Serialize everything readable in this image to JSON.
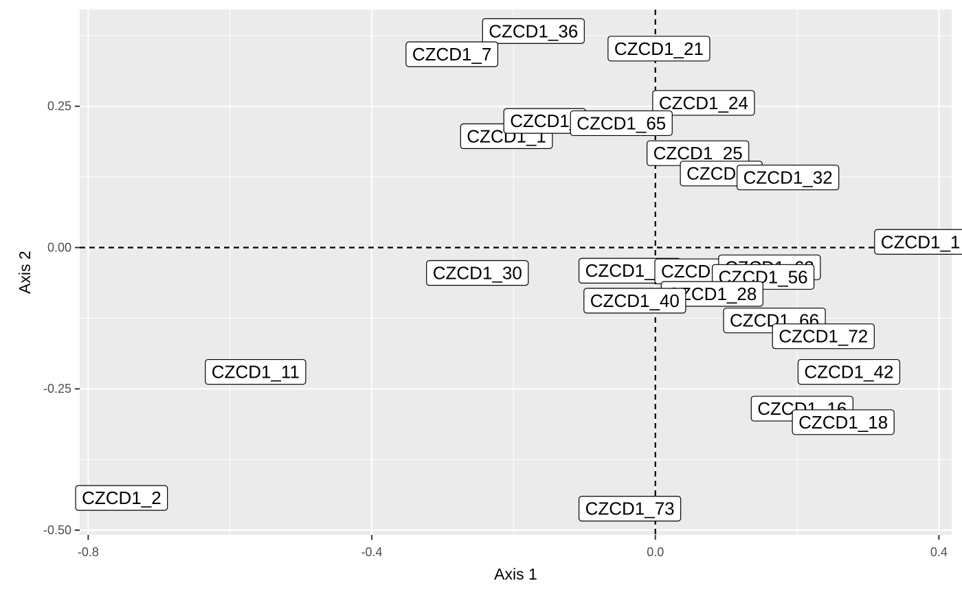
{
  "chart_data": {
    "type": "scatter",
    "xlabel": "Axis 1",
    "ylabel": "Axis 2",
    "xlim": [
      -0.812,
      0.418
    ],
    "ylim": [
      -0.5085,
      0.421
    ],
    "x_ticks": [
      -0.8,
      -0.4,
      0.0,
      0.4
    ],
    "x_tick_labels": [
      "-0.8",
      "-0.4",
      "0.0",
      "0.4"
    ],
    "y_ticks": [
      0.25,
      0.0,
      -0.25,
      -0.5
    ],
    "y_tick_labels": [
      "0.25",
      "0.00",
      "-0.25",
      "-0.50"
    ],
    "grid": true,
    "reference_lines": {
      "x": 0,
      "y": 0,
      "style": "dashed"
    },
    "points": [
      {
        "label": "CZCD1_36",
        "x": -0.172,
        "y": 0.383
      },
      {
        "label": "CZCD1_7",
        "x": -0.287,
        "y": 0.342
      },
      {
        "label": "CZCD1_21",
        "x": 0.005,
        "y": 0.352
      },
      {
        "label": "CZCD1_24",
        "x": 0.068,
        "y": 0.256
      },
      {
        "label": "CZCD1_1",
        "x": -0.21,
        "y": 0.197
      },
      {
        "label": "CZCD1_",
        "x": -0.156,
        "y": 0.224
      },
      {
        "label": "CZCD1_65",
        "x": -0.048,
        "y": 0.22
      },
      {
        "label": "CZCD1_25",
        "x": 0.06,
        "y": 0.167
      },
      {
        "label": "CZCD1_",
        "x": 0.093,
        "y": 0.131
      },
      {
        "label": "CZCD1_32",
        "x": 0.187,
        "y": 0.124
      },
      {
        "label": "CZCD1_1",
        "x": 0.374,
        "y": 0.01
      },
      {
        "label": "CZCD1_30",
        "x": -0.251,
        "y": -0.045
      },
      {
        "label": "CZCD1_39",
        "x": -0.036,
        "y": -0.041
      },
      {
        "label": "CZCD1_",
        "x": 0.057,
        "y": -0.042
      },
      {
        "label": "CZCD1_63",
        "x": 0.161,
        "y": -0.035
      },
      {
        "label": "CZCD1_56",
        "x": 0.152,
        "y": -0.052
      },
      {
        "label": "CZCD1_28",
        "x": 0.08,
        "y": -0.082
      },
      {
        "label": "CZCD1_40",
        "x": -0.029,
        "y": -0.094
      },
      {
        "label": "CZCD1_66",
        "x": 0.168,
        "y": -0.129
      },
      {
        "label": "CZCD1_72",
        "x": 0.237,
        "y": -0.157
      },
      {
        "label": "CZCD1_11",
        "x": -0.564,
        "y": -0.22
      },
      {
        "label": "CZCD1_42",
        "x": 0.273,
        "y": -0.22
      },
      {
        "label": "CZCD1_16",
        "x": 0.207,
        "y": -0.285
      },
      {
        "label": "CZCD1_18",
        "x": 0.265,
        "y": -0.309
      },
      {
        "label": "CZCD1_2",
        "x": -0.753,
        "y": -0.443
      },
      {
        "label": "CZCD1_73",
        "x": -0.036,
        "y": -0.462
      }
    ]
  }
}
